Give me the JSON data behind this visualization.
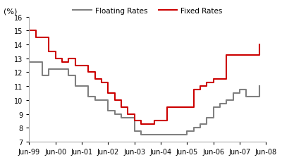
{
  "floating_x": [
    1999.5,
    1999.75,
    2000.0,
    2000.25,
    2000.5,
    2000.75,
    2001.0,
    2001.25,
    2001.5,
    2001.75,
    2002.0,
    2002.25,
    2002.5,
    2002.75,
    2003.0,
    2003.25,
    2003.5,
    2003.75,
    2004.0,
    2004.25,
    2004.5,
    2004.75,
    2005.0,
    2005.25,
    2005.5,
    2005.75,
    2006.0,
    2006.25,
    2006.5,
    2006.75,
    2007.0,
    2007.25,
    2007.5,
    2007.75,
    2008.0,
    2008.25
  ],
  "floating_y": [
    12.75,
    12.75,
    11.75,
    12.25,
    12.25,
    12.25,
    11.75,
    11.0,
    11.0,
    10.25,
    10.0,
    10.0,
    9.25,
    9.0,
    8.75,
    8.75,
    7.75,
    7.5,
    7.5,
    7.5,
    7.5,
    7.5,
    7.5,
    7.5,
    7.75,
    8.0,
    8.25,
    8.75,
    9.5,
    9.75,
    10.0,
    10.5,
    10.75,
    10.25,
    10.25,
    11.0
  ],
  "fixed_x": [
    1999.5,
    1999.75,
    2000.0,
    2000.25,
    2000.5,
    2000.75,
    2001.0,
    2001.25,
    2001.5,
    2001.75,
    2002.0,
    2002.25,
    2002.5,
    2002.75,
    2003.0,
    2003.25,
    2003.5,
    2003.75,
    2004.0,
    2004.25,
    2004.5,
    2004.75,
    2005.0,
    2005.25,
    2005.5,
    2005.75,
    2006.0,
    2006.25,
    2006.5,
    2006.75,
    2007.0,
    2007.25,
    2007.5,
    2007.75,
    2008.0,
    2008.25
  ],
  "fixed_y": [
    15.0,
    14.5,
    14.5,
    13.5,
    13.0,
    12.75,
    13.0,
    12.5,
    12.5,
    12.0,
    11.5,
    11.25,
    10.5,
    10.0,
    9.5,
    9.0,
    8.5,
    8.25,
    8.25,
    8.5,
    8.5,
    9.5,
    9.5,
    9.5,
    9.5,
    10.75,
    11.0,
    11.25,
    11.5,
    11.5,
    13.25,
    13.25,
    13.25,
    13.25,
    13.25,
    14.0
  ],
  "floating_color": "#808080",
  "fixed_color": "#cc0000",
  "legend_labels": [
    "Floating Rates",
    "Fixed Rates"
  ],
  "ylabel": "(%)",
  "ylim": [
    7,
    16
  ],
  "yticks": [
    7,
    8,
    9,
    10,
    11,
    12,
    13,
    14,
    15,
    16
  ],
  "xtick_labels": [
    "Jun-99",
    "Jun-00",
    "Jun-01",
    "Jun-02",
    "Jun-03",
    "Jun-04",
    "Jun-05",
    "Jun-06",
    "Jun-07",
    "Jun-08"
  ],
  "xtick_positions": [
    1999.5,
    2000.5,
    2001.5,
    2002.5,
    2003.5,
    2004.5,
    2005.5,
    2006.5,
    2007.5,
    2008.5
  ],
  "xlim": [
    1999.5,
    2008.5
  ],
  "background_color": "#ffffff",
  "linewidth": 1.5
}
